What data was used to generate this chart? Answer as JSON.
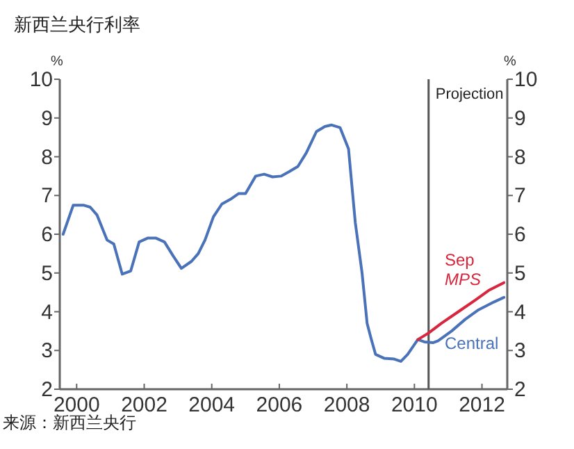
{
  "chart_data": {
    "type": "line",
    "title": "新西兰央行利率",
    "ylabel": "%",
    "y2label": "%",
    "annotations": [
      "来源：新西兰央行"
    ],
    "xlim": [
      1999.5,
      2012.75
    ],
    "xticks": [
      2000,
      2002,
      2004,
      2006,
      2008,
      2010,
      2012
    ],
    "ylim": [
      2,
      10
    ],
    "yticks": [
      2,
      3,
      4,
      5,
      6,
      7,
      8,
      9,
      10
    ],
    "y2lim": [
      2,
      10
    ],
    "y2ticks": [
      2,
      3,
      4,
      5,
      6,
      7,
      8,
      9,
      10
    ],
    "grid": false,
    "ref_lines": [
      {
        "axis": "x",
        "value": 2010.42,
        "label": "Projection",
        "color": "#555555"
      }
    ],
    "series": [
      {
        "name": "Central",
        "color": "#4a72b8",
        "x": [
          1999.6,
          1999.9,
          2000.2,
          2000.4,
          2000.6,
          2000.9,
          2001.1,
          2001.35,
          2001.6,
          2001.85,
          2002.1,
          2002.35,
          2002.6,
          2002.85,
          2003.1,
          2003.4,
          2003.6,
          2003.8,
          2004.05,
          2004.3,
          2004.55,
          2004.8,
          2005.0,
          2005.3,
          2005.55,
          2005.8,
          2006.05,
          2006.3,
          2006.55,
          2006.8,
          2007.1,
          2007.35,
          2007.55,
          2007.8,
          2008.05,
          2008.25,
          2008.45,
          2008.6,
          2008.72,
          2008.85,
          2009.1,
          2009.4,
          2009.6,
          2009.8,
          2010.1,
          2010.3,
          2010.55,
          2010.7,
          2011.1,
          2011.5,
          2011.9,
          2012.35,
          2012.65
        ],
        "values": [
          6.0,
          6.75,
          6.75,
          6.7,
          6.5,
          5.85,
          5.75,
          4.97,
          5.05,
          5.8,
          5.9,
          5.9,
          5.8,
          5.45,
          5.12,
          5.3,
          5.5,
          5.85,
          6.45,
          6.78,
          6.9,
          7.05,
          7.05,
          7.5,
          7.55,
          7.48,
          7.5,
          7.62,
          7.75,
          8.1,
          8.65,
          8.78,
          8.82,
          8.75,
          8.2,
          6.3,
          5.0,
          3.7,
          3.3,
          2.9,
          2.8,
          2.78,
          2.72,
          2.9,
          3.28,
          3.22,
          3.2,
          3.25,
          3.5,
          3.8,
          4.05,
          4.25,
          4.37
        ]
      },
      {
        "name": "Sep MPS",
        "color": "#d7263d",
        "x": [
          2010.1,
          2010.42,
          2010.8,
          2011.3,
          2011.8,
          2012.2,
          2012.65
        ],
        "values": [
          3.28,
          3.45,
          3.7,
          4.0,
          4.3,
          4.55,
          4.75
        ]
      }
    ]
  }
}
